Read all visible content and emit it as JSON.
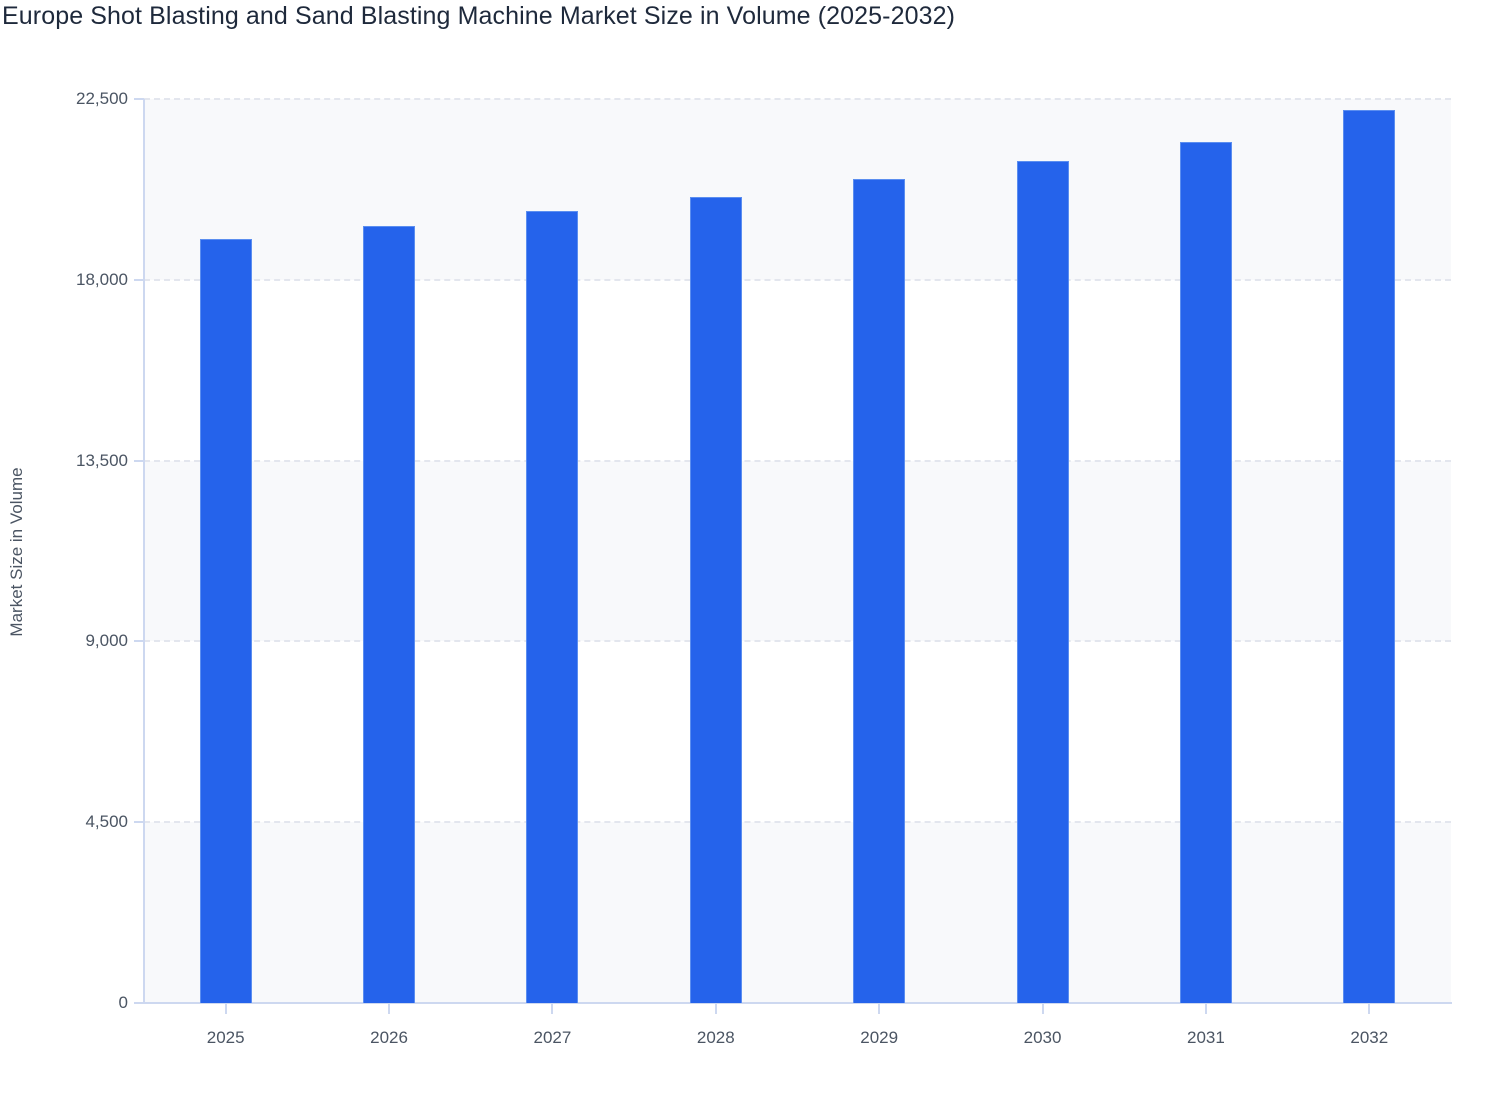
{
  "chart_data": {
    "type": "bar",
    "title": "Europe Shot Blasting and Sand Blasting Machine Market Size in Volume (2025-2032)",
    "xlabel": "",
    "ylabel": "Market Size in Volume",
    "categories": [
      "2025",
      "2026",
      "2027",
      "2028",
      "2029",
      "2030",
      "2031",
      "2032"
    ],
    "values": [
      19020,
      19340,
      19710,
      20060,
      20510,
      20960,
      21430,
      22230
    ],
    "ylim": [
      0,
      22500
    ],
    "yticks": [
      0,
      4500,
      9000,
      13500,
      18000,
      22500
    ],
    "ytick_labels": [
      "0",
      "4,500",
      "9,000",
      "13,500",
      "18,000",
      "22,500"
    ],
    "grid": true,
    "legend": null,
    "bar_color": "#2563eb"
  }
}
